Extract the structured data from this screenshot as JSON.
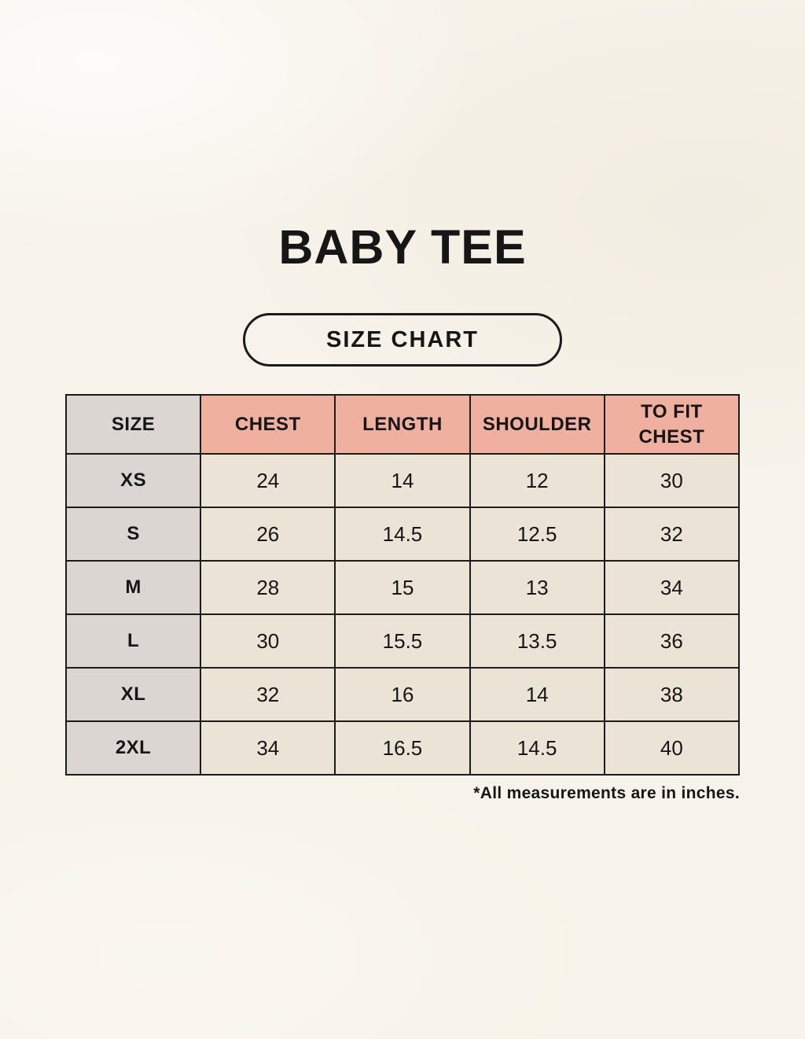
{
  "page": {
    "title": "BABY TEE",
    "size_chart_label": "SIZE CHART",
    "footnote": "*All measurements are in inches."
  },
  "table": {
    "headers": [
      "SIZE",
      "CHEST",
      "LENGTH",
      "SHOULDER",
      "TO FIT CHEST"
    ],
    "rows": [
      [
        "XS",
        "24",
        "14",
        "12",
        "30"
      ],
      [
        "S",
        "26",
        "14.5",
        "12.5",
        "32"
      ],
      [
        "M",
        "28",
        "15",
        "13",
        "34"
      ],
      [
        "L",
        "30",
        "15.5",
        "13.5",
        "36"
      ],
      [
        "XL",
        "32",
        "16",
        "14",
        "38"
      ],
      [
        "2XL",
        "34",
        "16.5",
        "14.5",
        "40"
      ]
    ],
    "units": "inches"
  },
  "colors": {
    "background": "#f7f3ea",
    "header_accent": "#efb0a0",
    "size_column": "#dcd6d2",
    "cell": "#ebe4d6",
    "border": "#1b1b1b",
    "text": "#161616"
  }
}
